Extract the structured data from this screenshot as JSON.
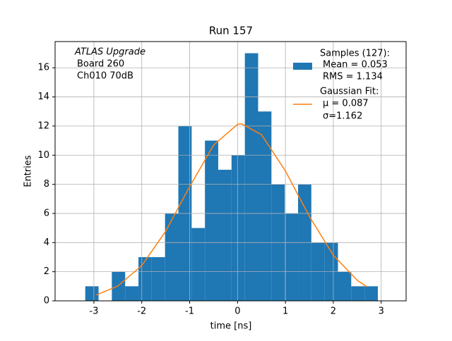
{
  "chart_data": {
    "type": "histogram",
    "title": "Run 157",
    "xlabel": "time [ns]",
    "ylabel": "Entries",
    "bins": [
      -3.18,
      -2.902,
      -2.625,
      -2.347,
      -2.069,
      -1.792,
      -1.514,
      -1.236,
      -0.958,
      -0.681,
      -0.403,
      -0.125,
      0.153,
      0.43,
      0.708,
      0.986,
      1.264,
      1.541,
      1.819,
      2.097,
      2.374,
      2.652,
      2.93
    ],
    "values": [
      1,
      0,
      2,
      1,
      3,
      3,
      6,
      12,
      5,
      11,
      9,
      10,
      17,
      13,
      8,
      6,
      8,
      4,
      4,
      2,
      1,
      1
    ],
    "color": "#1f77b4",
    "name": "Samples (127):",
    "details": [
      "Mean = 0.053",
      "RMS = 1.134"
    ],
    "fit": {
      "name": "Gaussian Fit:",
      "details": [
        "μ = 0.087",
        "σ=1.162"
      ],
      "color": "#ff7f0e",
      "x": [
        -2.95,
        -2.5,
        -2.0,
        -1.5,
        -1.0,
        -0.5,
        0,
        0.087,
        0.5,
        1.0,
        1.5,
        2.0,
        2.5,
        2.7
      ],
      "values": [
        0.4,
        1.02,
        2.42,
        4.78,
        7.84,
        10.69,
        12.12,
        12.15,
        11.41,
        8.92,
        5.8,
        3.13,
        1.41,
        0.97
      ]
    },
    "annotation": [
      "ATLAS Upgrade",
      "Board 260",
      "Ch010 70dB"
    ],
    "xlim": [
      -3.81,
      3.52
    ],
    "ylim": [
      0,
      17.8
    ],
    "xticks": [
      -3,
      -2,
      -1,
      0,
      1,
      2,
      3
    ],
    "yticks": [
      0,
      2,
      4,
      6,
      8,
      10,
      12,
      14,
      16
    ],
    "grid": true
  }
}
